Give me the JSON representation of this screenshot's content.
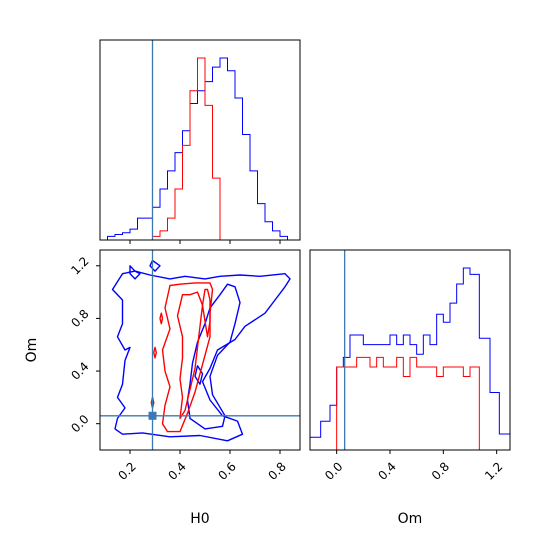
{
  "chart_data": {
    "type": "corner",
    "parameters": [
      "H0",
      "Om"
    ],
    "colors": {
      "run_a": "#0000ff",
      "run_b": "#ff0000",
      "truth": "#3a7ab4"
    },
    "truth": {
      "H0": 0.29,
      "Om": 0.06
    },
    "panels": {
      "hist_H0": {
        "xlim": [
          0.08,
          0.88
        ],
        "bin_edges": [
          0.11,
          0.14,
          0.17,
          0.2,
          0.23,
          0.26,
          0.29,
          0.32,
          0.35,
          0.38,
          0.41,
          0.44,
          0.47,
          0.5,
          0.53,
          0.56,
          0.59,
          0.62,
          0.65,
          0.68,
          0.71,
          0.74,
          0.77,
          0.8,
          0.83,
          0.86
        ],
        "series": [
          {
            "color": "#0000ff",
            "values": [
              2,
              3,
              4,
              6,
              12,
              12,
              18,
              28,
              38,
              48,
              60,
              75,
              82,
              87,
              95,
              100,
              93,
              78,
              58,
              38,
              20,
              10,
              5,
              2,
              0
            ]
          },
          {
            "color": "#ff0000",
            "values": [
              0,
              0,
              0,
              0,
              0,
              0,
              2,
              5,
              12,
              28,
              52,
              82,
              100,
              74,
              34,
              0,
              0,
              0,
              0,
              0,
              0,
              0,
              0,
              0,
              0
            ]
          }
        ]
      },
      "hist_Om": {
        "xlim": [
          -0.2,
          1.3
        ],
        "xticks": [
          0.0,
          0.4,
          0.8,
          1.2
        ],
        "xlabel": "Om",
        "bin_edges": [
          -0.2,
          -0.12,
          -0.05,
          0.0,
          0.05,
          0.1,
          0.15,
          0.2,
          0.25,
          0.3,
          0.35,
          0.4,
          0.45,
          0.5,
          0.55,
          0.6,
          0.65,
          0.7,
          0.75,
          0.8,
          0.85,
          0.9,
          0.95,
          1.0,
          1.07,
          1.15,
          1.22,
          1.3
        ],
        "series": [
          {
            "color": "#0000ff",
            "values": [
              8,
              18,
              28,
              52,
              58,
              72,
              72,
              66,
              66,
              66,
              66,
              72,
              66,
              72,
              66,
              60,
              72,
              66,
              85,
              80,
              92,
              104,
              114,
              110,
              70,
              36,
              10
            ]
          },
          {
            "color": "#ff0000",
            "values": [
              0,
              0,
              0,
              52,
              52,
              52,
              58,
              58,
              52,
              58,
              52,
              52,
              58,
              46,
              58,
              52,
              52,
              52,
              46,
              52,
              52,
              52,
              46,
              52,
              0,
              0,
              0
            ]
          }
        ]
      },
      "joint": {
        "xlim": [
          0.08,
          0.88
        ],
        "ylim": [
          -0.2,
          1.32
        ],
        "xticks": [
          0.2,
          0.4,
          0.6,
          0.8
        ],
        "yticks": [
          0.0,
          0.4,
          0.8,
          1.2
        ],
        "xlabel": "H0",
        "ylabel": "Om",
        "contours": [
          {
            "color": "#0000ff",
            "points": [
              [
                0.17,
                1.14
              ],
              [
                0.13,
                1.02
              ],
              [
                0.17,
                0.94
              ],
              [
                0.17,
                0.76
              ],
              [
                0.15,
                0.66
              ],
              [
                0.18,
                0.56
              ],
              [
                0.2,
                0.58
              ],
              [
                0.18,
                0.48
              ],
              [
                0.17,
                0.3
              ],
              [
                0.15,
                0.2
              ],
              [
                0.18,
                0.12
              ],
              [
                0.15,
                0.04
              ],
              [
                0.14,
                -0.04
              ],
              [
                0.17,
                -0.08
              ],
              [
                0.25,
                -0.07
              ],
              [
                0.36,
                -0.1
              ],
              [
                0.48,
                -0.09
              ],
              [
                0.59,
                -0.13
              ],
              [
                0.65,
                -0.08
              ],
              [
                0.63,
                0.02
              ],
              [
                0.57,
                0.06
              ],
              [
                0.52,
                0.18
              ],
              [
                0.49,
                0.32
              ],
              [
                0.52,
                0.42
              ],
              [
                0.55,
                0.56
              ],
              [
                0.62,
                0.64
              ],
              [
                0.66,
                0.74
              ],
              [
                0.74,
                0.84
              ],
              [
                0.78,
                0.94
              ],
              [
                0.82,
                1.04
              ],
              [
                0.84,
                1.1
              ],
              [
                0.82,
                1.14
              ],
              [
                0.72,
                1.12
              ],
              [
                0.64,
                1.13
              ],
              [
                0.56,
                1.12
              ],
              [
                0.5,
                1.1
              ],
              [
                0.42,
                1.12
              ],
              [
                0.36,
                1.1
              ],
              [
                0.28,
                1.13
              ],
              [
                0.22,
                1.16
              ],
              [
                0.17,
                1.14
              ]
            ]
          },
          {
            "color": "#0000ff",
            "points": [
              [
                0.59,
                1.06
              ],
              [
                0.56,
                0.98
              ],
              [
                0.52,
                0.88
              ],
              [
                0.5,
                0.76
              ],
              [
                0.47,
                0.62
              ],
              [
                0.45,
                0.46
              ],
              [
                0.44,
                0.3
              ],
              [
                0.43,
                0.18
              ],
              [
                0.44,
                0.04
              ],
              [
                0.5,
                -0.04
              ],
              [
                0.57,
                -0.02
              ],
              [
                0.58,
                0.06
              ],
              [
                0.53,
                0.22
              ],
              [
                0.52,
                0.36
              ],
              [
                0.55,
                0.52
              ],
              [
                0.6,
                0.62
              ],
              [
                0.62,
                0.76
              ],
              [
                0.64,
                0.92
              ],
              [
                0.62,
                1.04
              ],
              [
                0.59,
                1.06
              ]
            ]
          },
          {
            "color": "#0000ff",
            "points": [
              [
                0.2,
                1.2
              ],
              [
                0.22,
                1.16
              ],
              [
                0.24,
                1.14
              ],
              [
                0.22,
                1.1
              ],
              [
                0.2,
                1.14
              ],
              [
                0.2,
                1.2
              ]
            ]
          },
          {
            "color": "#0000ff",
            "points": [
              [
                0.29,
                1.24
              ],
              [
                0.32,
                1.2
              ],
              [
                0.3,
                1.16
              ],
              [
                0.28,
                1.2
              ],
              [
                0.29,
                1.24
              ]
            ]
          },
          {
            "color": "#0000ff",
            "points": [
              [
                0.47,
                0.44
              ],
              [
                0.49,
                0.38
              ],
              [
                0.48,
                0.3
              ],
              [
                0.46,
                0.36
              ],
              [
                0.47,
                0.44
              ]
            ]
          },
          {
            "color": "#ff0000",
            "points": [
              [
                0.36,
                1.05
              ],
              [
                0.34,
                0.88
              ],
              [
                0.36,
                0.72
              ],
              [
                0.33,
                0.56
              ],
              [
                0.34,
                0.4
              ],
              [
                0.36,
                0.28
              ],
              [
                0.34,
                0.14
              ],
              [
                0.33,
                0.0
              ],
              [
                0.35,
                -0.06
              ],
              [
                0.4,
                -0.06
              ],
              [
                0.43,
                0.08
              ],
              [
                0.46,
                0.24
              ],
              [
                0.48,
                0.38
              ],
              [
                0.5,
                0.52
              ],
              [
                0.52,
                0.66
              ],
              [
                0.52,
                0.84
              ],
              [
                0.53,
                1.02
              ],
              [
                0.52,
                1.07
              ],
              [
                0.46,
                1.07
              ],
              [
                0.4,
                1.06
              ],
              [
                0.36,
                1.05
              ]
            ]
          },
          {
            "color": "#ff0000",
            "points": [
              [
                0.41,
                0.98
              ],
              [
                0.39,
                0.82
              ],
              [
                0.41,
                0.66
              ],
              [
                0.41,
                0.5
              ],
              [
                0.4,
                0.34
              ],
              [
                0.41,
                0.2
              ],
              [
                0.4,
                0.04
              ],
              [
                0.42,
                0.1
              ],
              [
                0.44,
                0.26
              ],
              [
                0.46,
                0.42
              ],
              [
                0.47,
                0.58
              ],
              [
                0.48,
                0.74
              ],
              [
                0.49,
                0.9
              ],
              [
                0.47,
                1.0
              ],
              [
                0.44,
                0.98
              ],
              [
                0.41,
                0.98
              ]
            ]
          },
          {
            "color": "#ff0000",
            "points": [
              [
                0.5,
                1.02
              ],
              [
                0.49,
                0.9
              ],
              [
                0.5,
                0.78
              ],
              [
                0.51,
                0.66
              ],
              [
                0.52,
                0.78
              ],
              [
                0.52,
                0.94
              ],
              [
                0.51,
                1.02
              ],
              [
                0.5,
                1.02
              ]
            ]
          },
          {
            "color": "#ff0000",
            "points": [
              [
                0.285,
                0.16
              ],
              [
                0.29,
                0.12
              ],
              [
                0.295,
                0.16
              ],
              [
                0.29,
                0.2
              ],
              [
                0.285,
                0.16
              ]
            ]
          },
          {
            "color": "#ff0000",
            "points": [
              [
                0.32,
                0.8
              ],
              [
                0.325,
                0.76
              ],
              [
                0.33,
                0.8
              ],
              [
                0.325,
                0.84
              ],
              [
                0.32,
                0.8
              ]
            ]
          },
          {
            "color": "#ff0000",
            "points": [
              [
                0.295,
                0.54
              ],
              [
                0.3,
                0.5
              ],
              [
                0.305,
                0.54
              ],
              [
                0.3,
                0.58
              ],
              [
                0.295,
                0.54
              ]
            ]
          }
        ]
      }
    }
  }
}
